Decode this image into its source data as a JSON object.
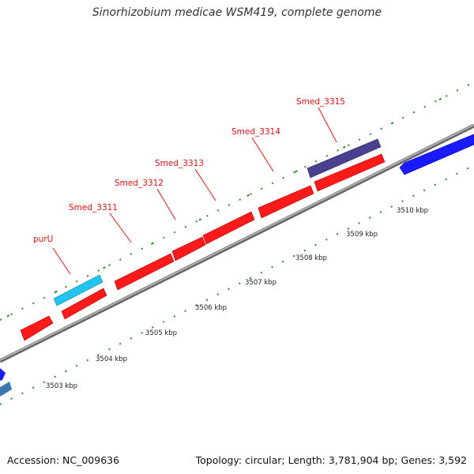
{
  "title": "Sinorhizobium medicae WSM419, complete genome",
  "footer": {
    "accession": "Accession: NC_009636",
    "summary": "Topology: circular; Length: 3,781,904 bp; Genes: 3,592"
  },
  "colors": {
    "backbone": "#8a8a8a",
    "tick": "#2e8b2e",
    "gene_red": "#ff1a1a",
    "gene_blue": "#1a1aff",
    "gene_cyan": "#22c4f0",
    "gene_slate": "#4a4090",
    "gene_steel": "#3b78b0",
    "label": "#dd1111",
    "kbp_label": "#222222"
  },
  "kbp_labels": [
    "3503 kbp",
    "3504 kbp",
    "3505 kbp",
    "3506 kbp",
    "3507 kbp",
    "3508 kbp",
    "3509 kbp",
    "3510 kbp"
  ],
  "gene_labels": [
    "purU",
    "Smed_3311",
    "Smed_3312",
    "Smed_3313",
    "Smed_3314",
    "Smed_3315"
  ]
}
